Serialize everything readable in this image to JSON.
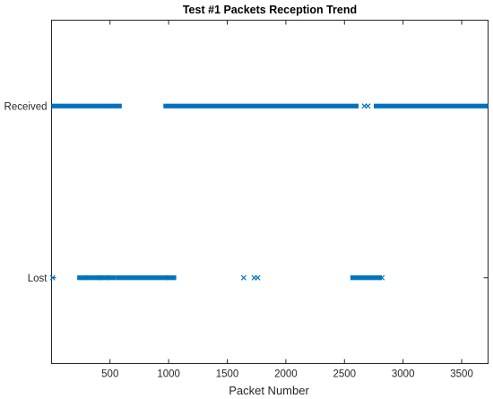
{
  "chart_data": {
    "type": "scatter",
    "title": "Test #1 Packets Reception Trend",
    "xlabel": "Packet Number",
    "ylabel": "",
    "xlim": [
      1,
      3725
    ],
    "ylim": [
      -0.5,
      1.5
    ],
    "xticks": [
      500,
      1000,
      1500,
      2000,
      2500,
      3000,
      3500
    ],
    "yticks": [
      {
        "value": 0,
        "label": "Lost"
      },
      {
        "value": 1,
        "label": "Received"
      }
    ],
    "grid": false,
    "legend": "none",
    "marker": "x",
    "color": "#0072BD",
    "series": [
      {
        "y": 1,
        "x_ranges": [
          [
            1,
            580
          ],
          [
            975,
            2600
          ],
          [
            2770,
            3725
          ]
        ],
        "x_points": [
          2670,
          2700
        ]
      },
      {
        "y": 0,
        "x_ranges": [
          [
            240,
            280
          ],
          [
            300,
            400
          ],
          [
            430,
            470
          ],
          [
            490,
            530
          ],
          [
            570,
            980
          ],
          [
            1000,
            1045
          ],
          [
            2570,
            2800
          ]
        ],
        "x_points": [
          10,
          415,
          1640,
          1730,
          1760,
          2820
        ]
      }
    ]
  }
}
